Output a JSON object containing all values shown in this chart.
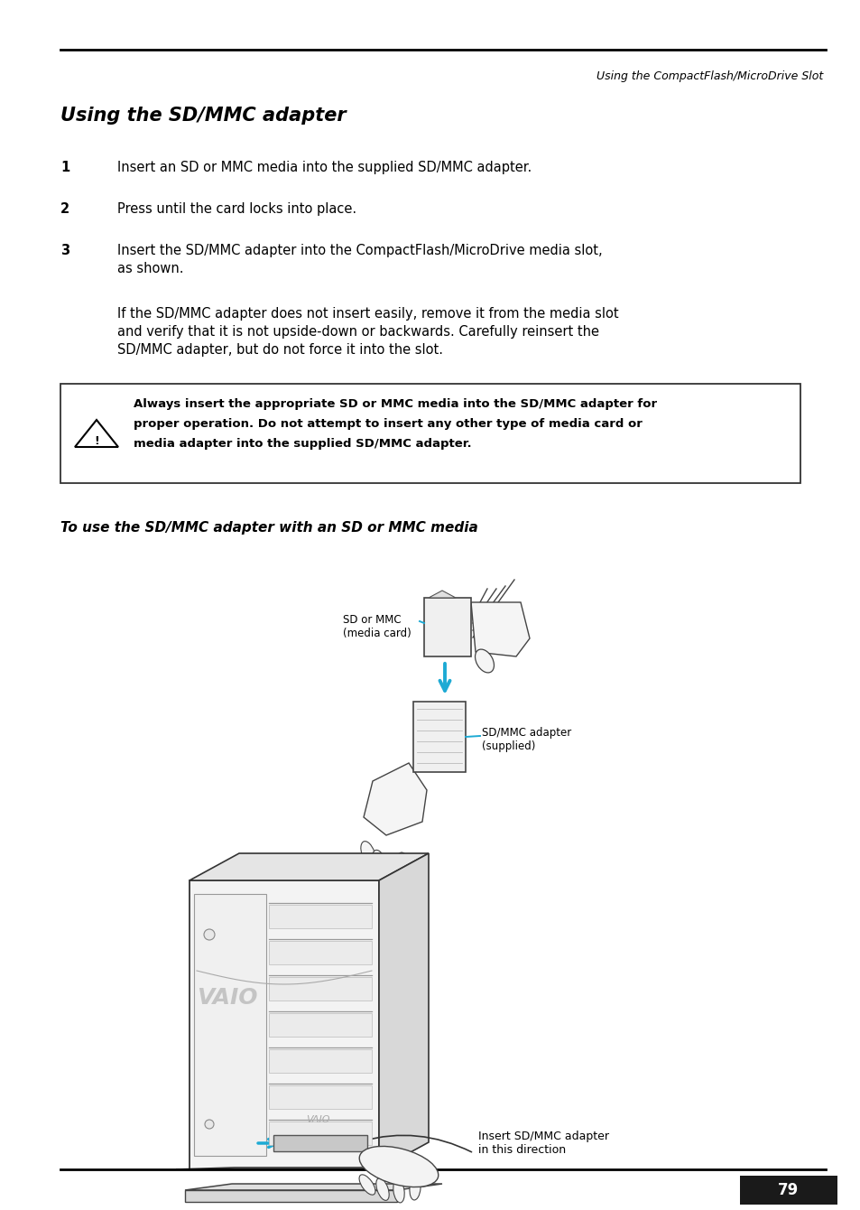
{
  "page_width": 9.54,
  "page_height": 13.4,
  "bg_color": "#ffffff",
  "header_text": "Using the CompactFlash/MicroDrive Slot",
  "title": "Using the SD/MMC adapter",
  "step1_num": "1",
  "step1_text": "Insert an SD or MMC media into the supplied SD/MMC adapter.",
  "step2_num": "2",
  "step2_text": "Press until the card locks into place.",
  "step3_num": "3",
  "step3_text_line1": "Insert the SD/MMC adapter into the CompactFlash/MicroDrive media slot,",
  "step3_text_line2": "as shown.",
  "para_line1": "If the SD/MMC adapter does not insert easily, remove it from the media slot",
  "para_line2": "and verify that it is not upside-down or backwards. Carefully reinsert the",
  "para_line3": "SD/MMC adapter, but do not force it into the slot.",
  "warn_line1": "Always insert the appropriate SD or MMC media into the SD/MMC adapter for",
  "warn_line2": "proper operation. Do not attempt to insert any other type of media card or",
  "warn_line3": "media adapter into the supplied SD/MMC adapter.",
  "subtitle": "To use the SD/MMC adapter with an SD or MMC media",
  "label_sd": "SD or MMC\n(media card)",
  "label_adapter": "SD/MMC adapter\n(supplied)",
  "label_insert": "Insert SD/MMC adapter\nin this direction",
  "page_num": "79",
  "cyan": "#1daad4",
  "black": "#000000",
  "dark_gray": "#333333",
  "mid_gray": "#888888",
  "light_gray": "#dddddd"
}
